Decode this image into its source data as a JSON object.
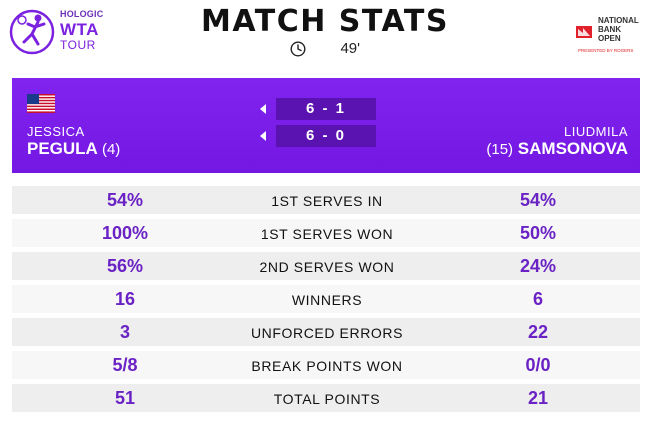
{
  "header": {
    "title": "MATCH STATS",
    "duration": "49'",
    "wta_logo": {
      "sponsor": "HOLOGIC",
      "name": "WTA",
      "tour": "TOUR"
    },
    "sponsor_logo": {
      "line1": "NATIONAL",
      "line2": "BANK",
      "line3": "OPEN",
      "sub": "PRESENTED BY ROGERS"
    }
  },
  "match": {
    "player1": {
      "first_name": "JESSICA",
      "last_name": "PEGULA",
      "seed": "(4)",
      "flag": "usa-flag-icon"
    },
    "player2": {
      "first_name": "LIUDMILA",
      "last_name": "SAMSONOVA",
      "seed": "(15)"
    },
    "sets": [
      "6 - 1",
      "6 - 0"
    ]
  },
  "stats": [
    {
      "label": "1ST SERVES IN",
      "p1": "54%",
      "p2": "54%"
    },
    {
      "label": "1ST SERVES WON",
      "p1": "100%",
      "p2": "50%"
    },
    {
      "label": "2ND SERVES WON",
      "p1": "56%",
      "p2": "24%"
    },
    {
      "label": "WINNERS",
      "p1": "16",
      "p2": "6"
    },
    {
      "label": "UNFORCED ERRORS",
      "p1": "3",
      "p2": "22"
    },
    {
      "label": "BREAK POINTS WON",
      "p1": "5/8",
      "p2": "0/0"
    },
    {
      "label": "TOTAL POINTS",
      "p1": "51",
      "p2": "21"
    }
  ],
  "colors": {
    "accent_purple": "#7b1fe8",
    "score_box": "#5a12b0",
    "stat_value": "#6a22c4"
  }
}
